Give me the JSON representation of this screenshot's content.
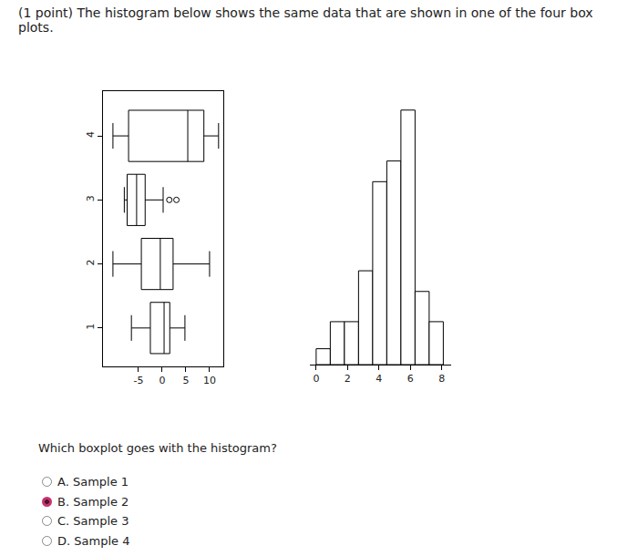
{
  "header": "(1 point) The histogram below shows the same data that are shown in one of the four box plots.",
  "chart_data": [
    {
      "type": "box",
      "orientation": "horizontal",
      "color": "#ffffff",
      "boxes": [
        {
          "position": 1,
          "min": -6.5,
          "q1": -2.5,
          "median": 0.4,
          "q3": 1.6,
          "max": 4.8,
          "outliers": []
        },
        {
          "position": 2,
          "min": -10.4,
          "q1": -4.4,
          "median": -0.4,
          "q3": 2.3,
          "max": 10.0,
          "outliers": []
        },
        {
          "position": 3,
          "min": -8.0,
          "q1": -7.4,
          "median": -5.4,
          "q3": -3.6,
          "max": 0.2,
          "outliers": [
            1.5,
            3.0
          ]
        },
        {
          "position": 4,
          "min": -10.4,
          "q1": -7.1,
          "median": 5.4,
          "q3": 8.8,
          "max": 11.9,
          "outliers": []
        }
      ],
      "xlim": [
        -12.5,
        12.9
      ],
      "xticks": [
        -5,
        0,
        5,
        10
      ],
      "ylim": [
        0.4,
        4.7
      ],
      "yticks": [
        1,
        2,
        3,
        4
      ],
      "grid": false
    },
    {
      "type": "histogram",
      "color": "#ffffff",
      "bins": [
        0,
        0.9,
        1.8,
        2.7,
        3.6,
        4.5,
        5.4,
        6.3,
        7.2,
        8.1
      ],
      "counts": [
        1,
        2.7,
        2.7,
        5.9,
        11.5,
        12.8,
        16,
        4.6,
        2.7
      ],
      "xlim": [
        -0.4,
        8.6
      ],
      "xticks": [
        0,
        2,
        4,
        6,
        8
      ],
      "ylim": [
        0,
        16.5
      ],
      "tick_labels": "x",
      "grid": false
    }
  ],
  "question": "Which boxplot goes with the histogram?",
  "options": [
    "A. Sample 1",
    "B. Sample 2",
    "C. Sample 3",
    "D. Sample 4"
  ],
  "selected": "B. Sample 2"
}
